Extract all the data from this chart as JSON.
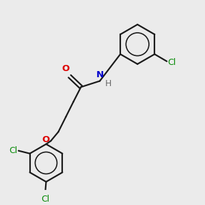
{
  "background_color": "#ebebeb",
  "bond_color": "#1a1a1a",
  "atom_colors": {
    "O": "#dd0000",
    "N": "#0000cc",
    "Cl": "#008800",
    "H": "#666666"
  },
  "figsize": [
    3.0,
    3.0
  ],
  "dpi": 100
}
